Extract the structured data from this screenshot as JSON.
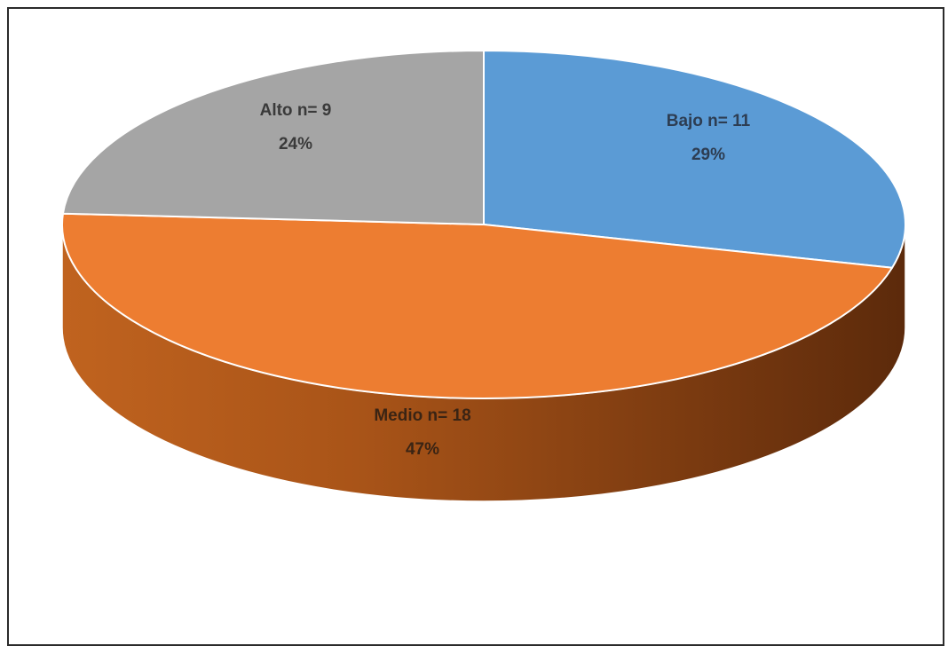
{
  "chart_data": {
    "type": "pie",
    "style": "3d",
    "title": "",
    "slices": [
      {
        "name": "Bajo",
        "count": 11,
        "value": 29,
        "label_line1": "Bajo n= 11",
        "label_line2": "29%",
        "color": "#5b9bd5",
        "label_color": "#2d3d52"
      },
      {
        "name": "Medio",
        "count": 18,
        "value": 47,
        "label_line1": "Medio n= 18",
        "label_line2": "47%",
        "color": "#ed7d31",
        "label_color": "#3a2414"
      },
      {
        "name": "Alto",
        "count": 9,
        "value": 24,
        "label_line1": "Alto n= 9",
        "label_line2": "24%",
        "color": "#a5a5a5",
        "label_color": "#3a3a3a"
      }
    ],
    "legend": "none",
    "grid": false
  }
}
